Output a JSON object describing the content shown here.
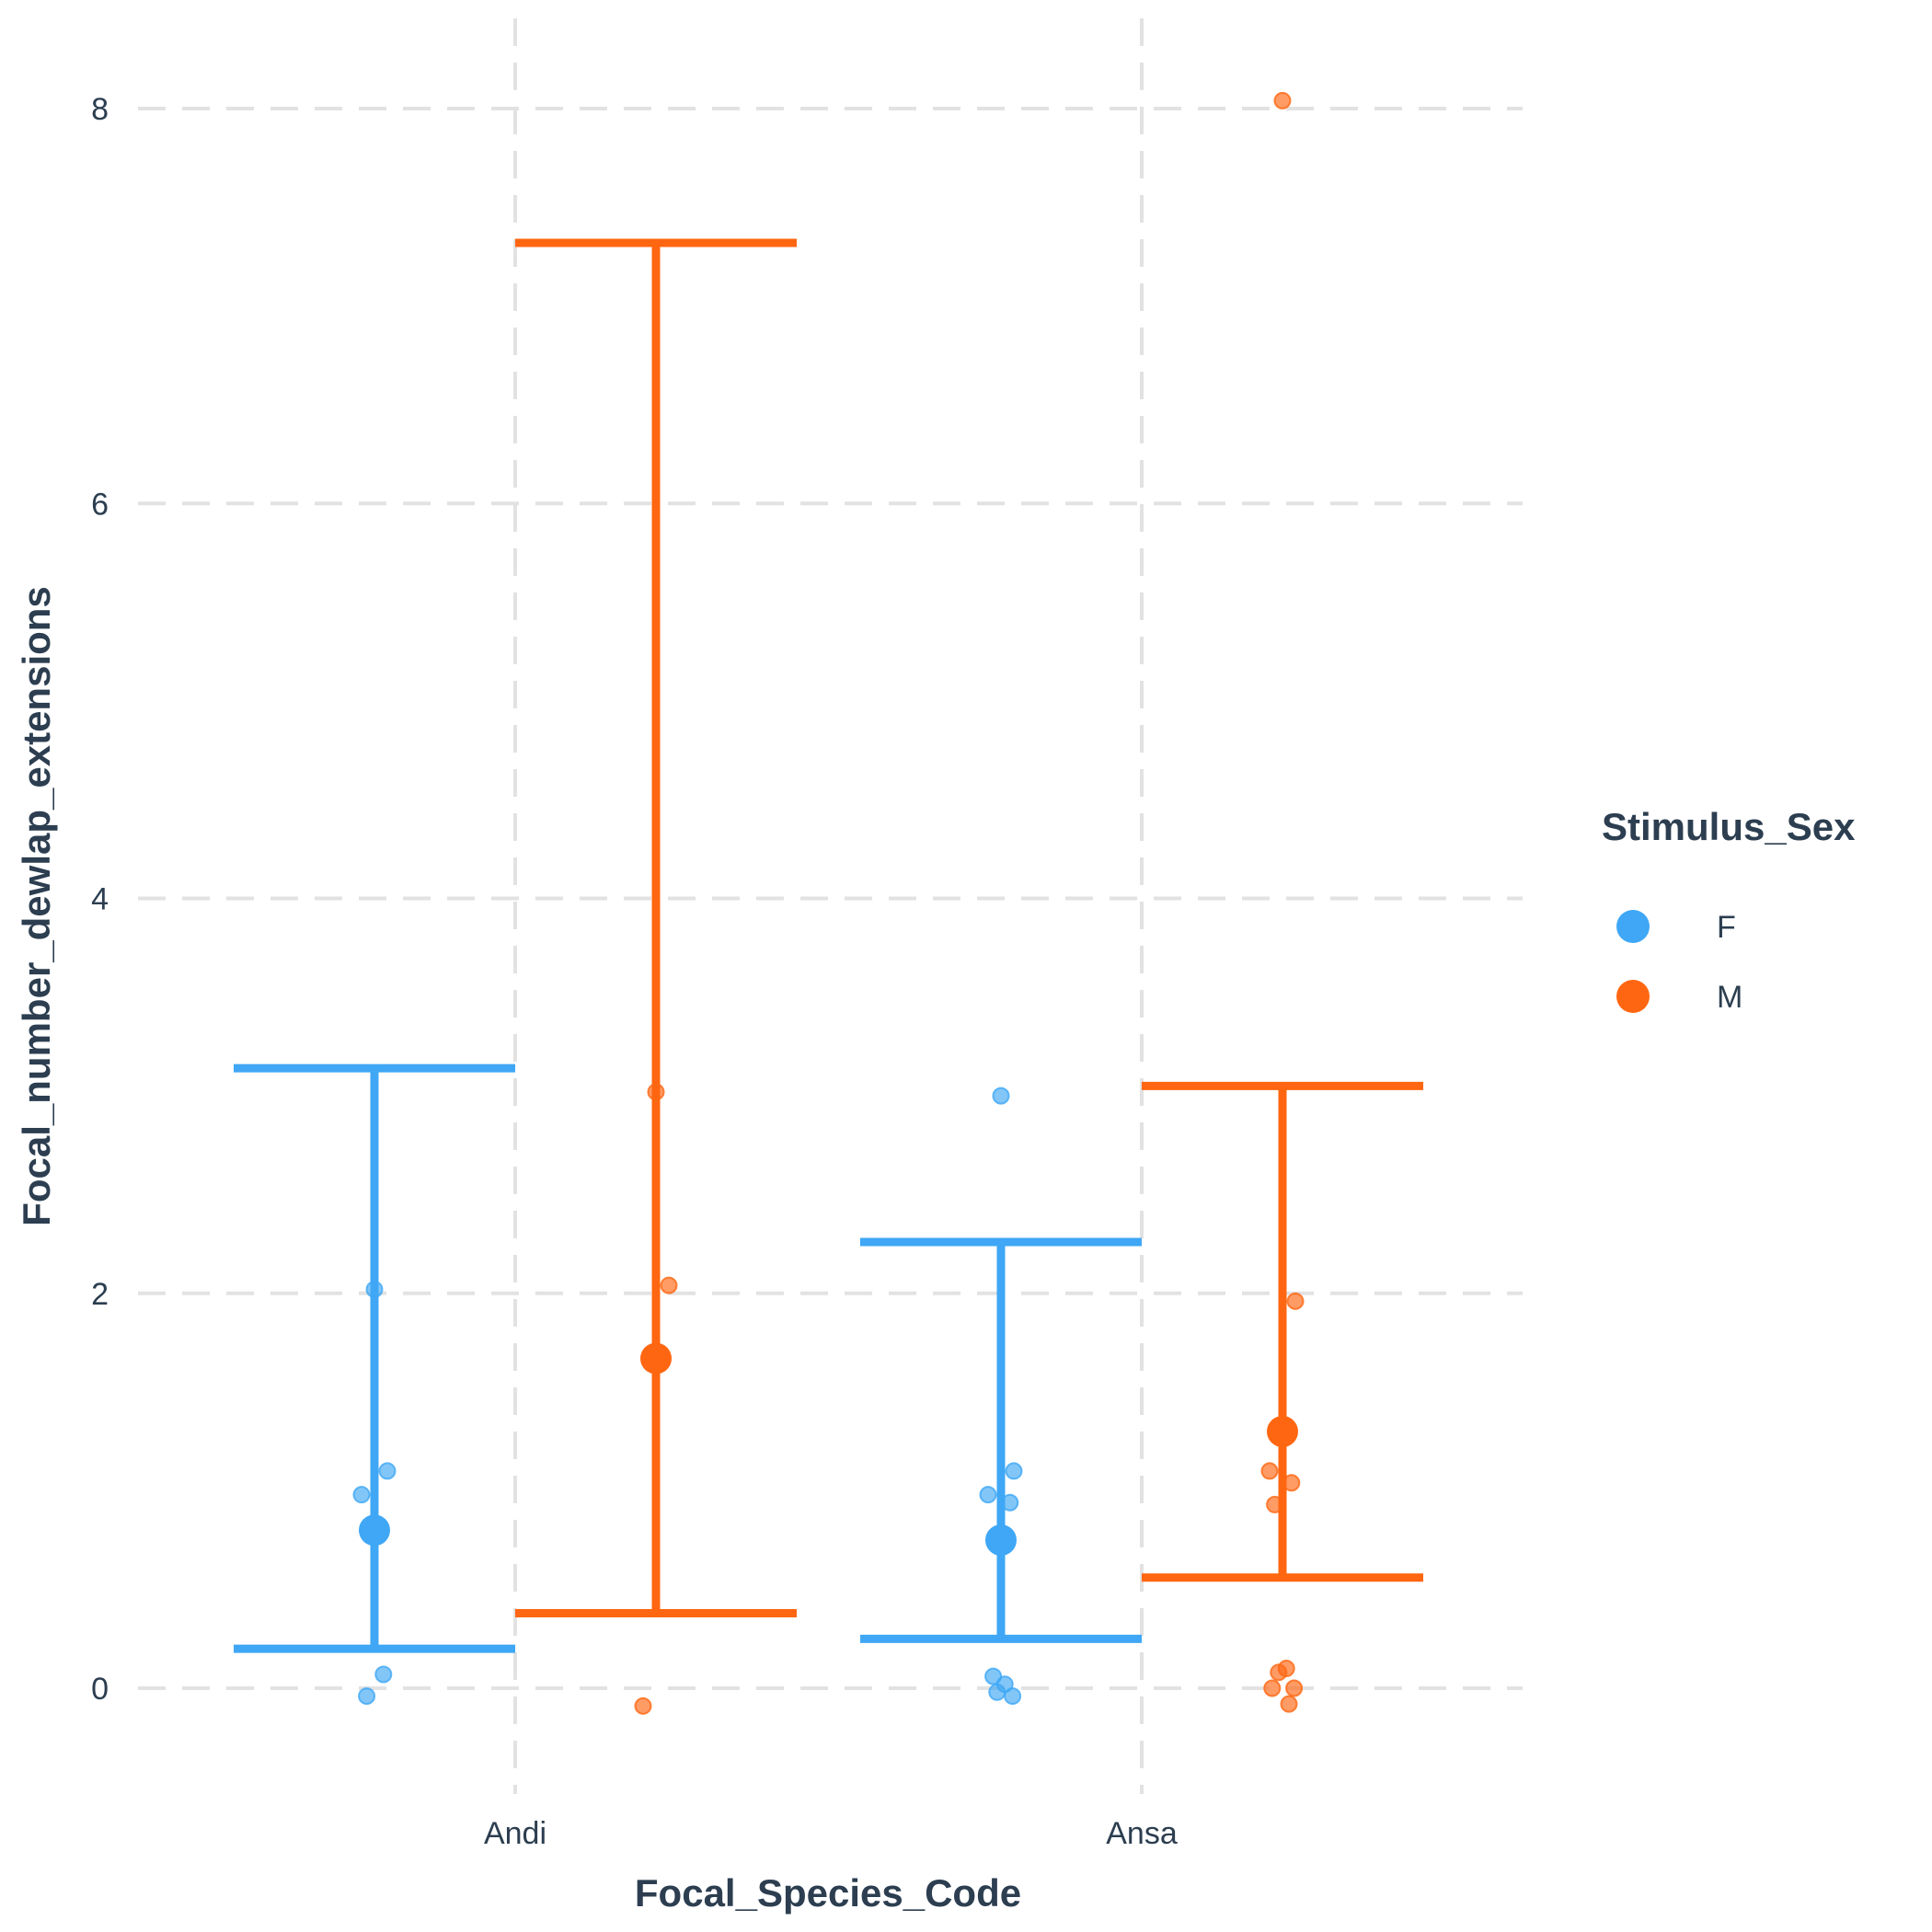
{
  "chart_data": {
    "type": "scatter",
    "xlabel": "Focal_Species_Code",
    "ylabel": "Focal_number_dewlap_extensions",
    "categories": [
      "Andi",
      "Ansa"
    ],
    "ylim": [
      -0.6,
      8.45
    ],
    "yticks": [
      0,
      2,
      4,
      6,
      8
    ],
    "grid": true,
    "legend": {
      "title": "Stimulus_Sex",
      "placement": "right",
      "entries": [
        {
          "label": "F",
          "color": "#3fa7f5"
        },
        {
          "label": "M",
          "color": "#ff6611"
        }
      ]
    },
    "series": [
      {
        "name": "F",
        "color": "#3fa7f5",
        "groups": [
          {
            "category": "Andi",
            "mean": 0.8,
            "ci_low": 0.2,
            "ci_high": 3.14,
            "points": [
              2.02,
              1.1,
              0.98,
              0.07,
              -0.04
            ]
          },
          {
            "category": "Ansa",
            "mean": 0.75,
            "ci_low": 0.25,
            "ci_high": 2.26,
            "points": [
              3.0,
              1.1,
              0.98,
              0.94,
              0.06,
              0.02,
              -0.02,
              -0.04
            ]
          }
        ]
      },
      {
        "name": "M",
        "color": "#ff6611",
        "groups": [
          {
            "category": "Andi",
            "mean": 1.67,
            "ci_low": 0.38,
            "ci_high": 7.32,
            "points": [
              3.02,
              2.04,
              -0.09
            ]
          },
          {
            "category": "Ansa",
            "mean": 1.3,
            "ci_low": 0.56,
            "ci_high": 3.05,
            "points": [
              8.04,
              1.96,
              1.1,
              1.04,
              0.93,
              0.1,
              0.08,
              0.0,
              0.0,
              -0.08
            ]
          }
        ]
      }
    ]
  }
}
